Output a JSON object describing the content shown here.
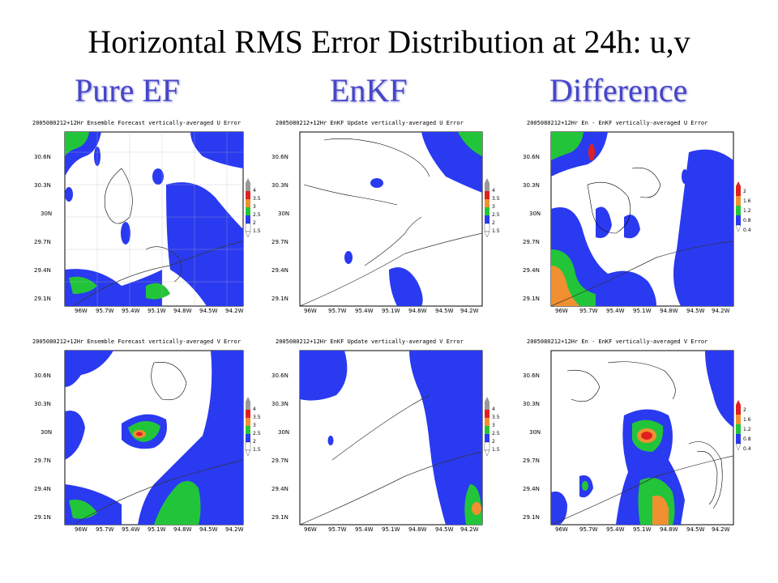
{
  "title": "Horizontal RMS Error Distribution at 24h: u,v",
  "columns": [
    "Pure EF",
    "EnKF",
    "Difference"
  ],
  "latitude_ticks": [
    "30.6N",
    "30.3N",
    "30N",
    "29.7N",
    "29.4N",
    "29.1N"
  ],
  "longitude_ticks": [
    "96W",
    "95.7W",
    "95.4W",
    "95.1W",
    "94.8W",
    "94.5W",
    "94.2W"
  ],
  "colorbar_error": [
    "4",
    "3.5",
    "3",
    "2.5",
    "2",
    "1.5"
  ],
  "colorbar_diff": [
    "2",
    "1.6",
    "1.2",
    "0.8",
    "0.4"
  ],
  "colors": {
    "blue": "#2a3af0",
    "green": "#22c53a",
    "orange": "#f09030",
    "red": "#e02020",
    "title_blue": "#4646c8"
  },
  "panels": [
    {
      "id": "pure-u",
      "title": "2005080212+12Hr Ensemble Forecast vertically-averaged U Error",
      "colorbar": "error"
    },
    {
      "id": "enkf-u",
      "title": "2005080212+12Hr EnKF Update vertically-averaged U Error",
      "colorbar": "error"
    },
    {
      "id": "diff-u",
      "title": "2005080212+12Hr En - EnKF vertically-averaged U Error",
      "colorbar": "diff"
    },
    {
      "id": "pure-v",
      "title": "2005080212+12Hr Ensemble Forecast vertically-averaged V Error",
      "colorbar": "error"
    },
    {
      "id": "enkf-v",
      "title": "2005080212+12Hr EnKF Update vertically-averaged V Error",
      "colorbar": "error"
    },
    {
      "id": "diff-v",
      "title": "2005080212+12Hr En - EnKF vertically-averaged V Error",
      "colorbar": "diff"
    }
  ]
}
